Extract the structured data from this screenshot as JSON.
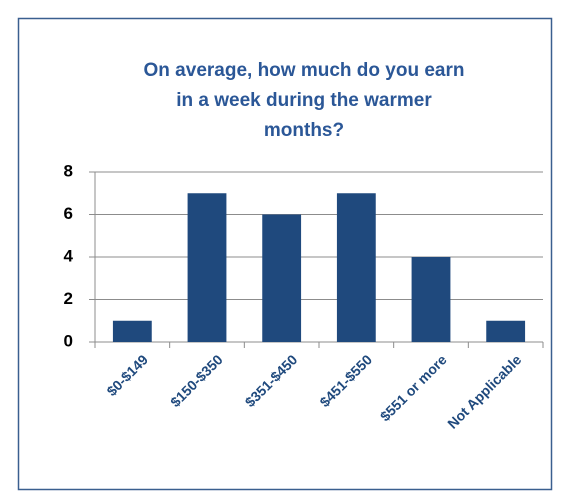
{
  "chart_data": {
    "type": "bar",
    "title": [
      "On average, how much do you earn",
      "in a week during the warmer",
      "months?"
    ],
    "categories": [
      "$0-$149",
      "$150-$350",
      "$351-$450",
      "$451-$550",
      "$551 or more",
      "Not Applicable"
    ],
    "values": [
      1,
      7,
      6,
      7,
      4,
      1
    ],
    "color": "#1f497d",
    "ylim": [
      0,
      8
    ],
    "yticks": [
      0,
      2,
      4,
      6,
      8
    ],
    "grid": true
  }
}
